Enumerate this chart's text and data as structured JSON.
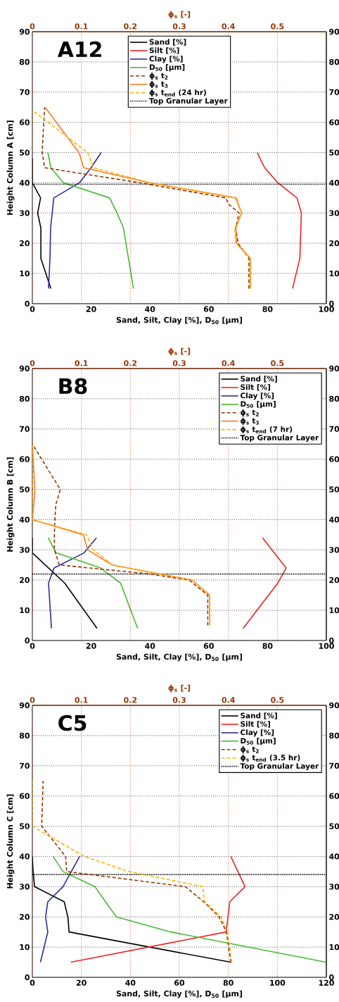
{
  "chart_data": [
    {
      "type": "line",
      "title": "A12",
      "xlabel": "Sand, Silt, Clay [%], D$_{50}$ [µm]",
      "x2label": "ϕ$_{s}$ [-]",
      "ylabel": "Height Column A [cm]",
      "xlim": [
        0,
        100
      ],
      "xticks": [
        0,
        20,
        40,
        60,
        80,
        100
      ],
      "x2lim": [
        0,
        0.6
      ],
      "x2ticks": [
        0,
        0.1,
        0.2,
        0.3,
        0.4,
        0.5
      ],
      "ylim": [
        0,
        90
      ],
      "yticks": [
        0,
        10,
        20,
        30,
        40,
        50,
        60,
        70,
        80,
        90
      ],
      "y2lim": [
        0,
        90
      ],
      "y2ticks": [
        0,
        10,
        20,
        30,
        40,
        50,
        60,
        70,
        80,
        90
      ],
      "grid": true,
      "legend": "top",
      "ref_lines": [
        {
          "axis": "y",
          "value": 39.5,
          "label": "Top Granular Layer",
          "color": "#000000",
          "line_style": "dotted"
        }
      ],
      "series": [
        {
          "name": "Sand [%]",
          "color": "#000000",
          "x": [
            6.3,
            2.9,
            2.9,
            1.8,
            2.8,
            0,
            0
          ],
          "values": [
            5,
            15,
            25,
            30,
            35,
            40,
            48
          ]
        },
        {
          "name": "Silt [%]",
          "color": "#ee2222",
          "x": [
            88.5,
            91,
            91.5,
            90,
            83.5,
            79,
            76.5
          ],
          "values": [
            5,
            15,
            30,
            35,
            40,
            45,
            50
          ]
        },
        {
          "name": "Clay [%]",
          "color": "#2b2b99",
          "x": [
            5.5,
            6,
            6.2,
            7.3,
            16,
            20,
            23.4
          ],
          "values": [
            5,
            15,
            25,
            35,
            40,
            45,
            50
          ]
        },
        {
          "name": "D$_{50}$ [µm]",
          "color": "#44bb33",
          "x": [
            34.4,
            31,
            28.8,
            26.3,
            10.6,
            6.3,
            5.3
          ],
          "values": [
            5,
            25,
            30,
            35,
            40,
            45,
            50
          ]
        },
        {
          "name": "ϕ$_{s}$ t$_{2}$",
          "color": "#993300",
          "axis": "x2",
          "line_style": "dashed",
          "x": [
            0.442,
            0.442,
            0.42,
            0.415,
            0.422,
            0.4,
            0.395,
            0.22,
            0.025,
            0.02,
            0.025
          ],
          "values": [
            5,
            15,
            20,
            25,
            30,
            33,
            35,
            40,
            45,
            50,
            65
          ]
        },
        {
          "name": "ϕ$_{s}$ t$_{3}$",
          "color": "#ff7722",
          "axis": "x2",
          "x": [
            0.445,
            0.445,
            0.417,
            0.415,
            0.427,
            0.415,
            0.24,
            0.105,
            0.095,
            0.026
          ],
          "values": [
            5,
            15,
            20,
            25,
            30,
            35,
            40,
            45,
            50,
            65
          ]
        },
        {
          "name": "ϕ$_{s}$ t$_{end}$ (24 hr)",
          "color": "#ffb300",
          "axis": "x2",
          "line_style": "dashed",
          "x": [
            0.445,
            0.445,
            0.415,
            0.413,
            0.427,
            0.417,
            0.24,
            0.125,
            0.113,
            0
          ],
          "values": [
            5,
            15,
            20,
            25,
            30,
            35,
            40,
            45,
            50,
            64
          ]
        }
      ]
    },
    {
      "type": "line",
      "title": "B8",
      "xlabel": "Sand, Silt, Clay [%], D$_{50}$ [µm]",
      "x2label": "ϕ$_{s}$ [-]",
      "ylabel": "Height Column B [cm]",
      "xlim": [
        0,
        100
      ],
      "xticks": [
        0,
        20,
        40,
        60,
        80,
        100
      ],
      "x2lim": [
        0,
        0.6
      ],
      "x2ticks": [
        0,
        0.1,
        0.2,
        0.3,
        0.4,
        0.5
      ],
      "ylim": [
        0,
        90
      ],
      "yticks": [
        0,
        10,
        20,
        30,
        40,
        50,
        60,
        70,
        80,
        90
      ],
      "y2lim": [
        0,
        90
      ],
      "y2ticks": [
        0,
        10,
        20,
        30,
        40,
        50,
        60,
        70,
        80,
        90
      ],
      "grid": true,
      "legend": "top right",
      "ref_lines": [
        {
          "axis": "y",
          "value": 22,
          "label": "Top Granular Layer",
          "color": "#000000",
          "line_style": "dotted"
        }
      ],
      "series": [
        {
          "name": "Sand [%]",
          "color": "#000000",
          "x": [
            22,
            11,
            0,
            0
          ],
          "values": [
            4,
            19,
            29,
            34
          ]
        },
        {
          "name": "Silt [%]",
          "color": "#ee2222",
          "x": [
            71.7,
            83.5,
            86.3,
            78.3
          ],
          "values": [
            4,
            19,
            24,
            34
          ]
        },
        {
          "name": "Clay [%]",
          "color": "#2b2b99",
          "x": [
            6.5,
            5.5,
            7.4,
            17.6,
            21.8
          ],
          "values": [
            4,
            19,
            24,
            29,
            34
          ]
        },
        {
          "name": "D$_{50}$ [µm]",
          "color": "#44bb33",
          "x": [
            35.8,
            30,
            23.2,
            8.1,
            5.4
          ],
          "values": [
            4,
            19,
            24,
            29,
            34
          ]
        },
        {
          "name": "ϕ$_{s}$ t$_{2}$",
          "color": "#993300",
          "axis": "x2",
          "line_style": "dashed",
          "x": [
            0.358,
            0.358,
            0.32,
            0.24,
            0.055,
            0.045,
            0.045,
            0.046,
            0.048,
            0.057,
            0
          ],
          "values": [
            5,
            15,
            20,
            22,
            25,
            30,
            35,
            40,
            45,
            50,
            65
          ]
        },
        {
          "name": "ϕ$_{s}$ t$_{3}$",
          "color": "#ff7722",
          "axis": "x2",
          "x": [
            0.362,
            0.362,
            0.326,
            0.163,
            0.113,
            0.104,
            0,
            0.003,
            0.005,
            0
          ],
          "values": [
            5,
            15,
            20,
            25,
            30,
            35,
            40,
            45,
            50,
            65
          ]
        },
        {
          "name": "ϕ$_{s}$ t$_{end}$ (7 hr)",
          "color": "#ffb300",
          "axis": "x2",
          "line_style": "dashed",
          "x": [
            0.362,
            0.362,
            0.326,
            0.163,
            0.125,
            0.11,
            0,
            0
          ],
          "values": [
            5,
            15,
            20,
            25,
            30,
            35,
            40,
            65
          ]
        }
      ]
    },
    {
      "type": "line",
      "title": "C5",
      "xlabel": "Sand, Silt, Clay [%], D$_{50}$ [µm]",
      "x2label": "ϕ$_{s}$ [-]",
      "ylabel": "Height Column C [cm]",
      "xlim": [
        0,
        120
      ],
      "xticks": [
        0,
        20,
        40,
        60,
        80,
        100,
        120
      ],
      "x2lim": [
        0,
        0.6
      ],
      "x2ticks": [
        0,
        0.1,
        0.2,
        0.3,
        0.4,
        0.5
      ],
      "ylim": [
        0,
        90
      ],
      "yticks": [
        0,
        10,
        20,
        30,
        40,
        50,
        60,
        70,
        80,
        90
      ],
      "y2lim": [
        0,
        90
      ],
      "y2ticks": [
        0,
        10,
        20,
        30,
        40,
        50,
        60,
        70,
        80,
        90
      ],
      "grid": true,
      "legend": "top right",
      "ref_lines": [
        {
          "axis": "y",
          "value": 34,
          "label": "Top Granular Layer",
          "color": "#000000",
          "line_style": "dotted"
        }
      ],
      "series": [
        {
          "name": "Sand [%]",
          "color": "#000000",
          "x": [
            81,
            15,
            14.5,
            13,
            0.9,
            0.3,
            0
          ],
          "values": [
            5,
            15,
            20,
            25,
            30,
            35,
            40
          ]
        },
        {
          "name": "Silt [%]",
          "color": "#ee2222",
          "x": [
            15.7,
            79.1,
            80.6,
            86.8,
            81
          ],
          "values": [
            5,
            15,
            25,
            30,
            40
          ]
        },
        {
          "name": "Clay [%]",
          "color": "#2b2b99",
          "x": [
            3.3,
            6.3,
            5.4,
            6.3,
            12.5,
            19.3
          ],
          "values": [
            5,
            15,
            20,
            25,
            30,
            40
          ]
        },
        {
          "name": "D$_{50}$ [µm]",
          "color": "#44bb33",
          "x": [
            119.8,
            56.6,
            34.3,
            25.5,
            12.5,
            8.5
          ],
          "values": [
            5,
            15,
            20,
            30,
            35,
            40
          ]
        },
        {
          "name": "ϕ$_{s}$ t$_{2}$",
          "color": "#993300",
          "axis": "x2",
          "line_style": "dashed",
          "x": [
            0.405,
            0.396,
            0.381,
            0.35,
            0.312,
            0.07,
            0.068,
            0.019,
            0.022
          ],
          "values": [
            5,
            15,
            20,
            25,
            30,
            35,
            40,
            50,
            65
          ]
        },
        {
          "name": "ϕ$_{s}$ t$_{end}$ (3.5 hr)",
          "color": "#ffb300",
          "axis": "x2",
          "line_style": "dashed",
          "x": [
            0.407,
            0.398,
            0.385,
            0.352,
            0.348,
            0.197,
            0.106,
            0,
            0
          ],
          "values": [
            5,
            15,
            20,
            25,
            30,
            35,
            40,
            50,
            65
          ]
        }
      ]
    }
  ]
}
